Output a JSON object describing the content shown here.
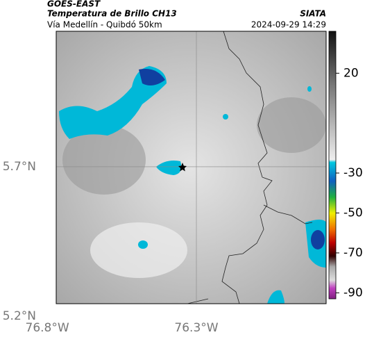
{
  "header": {
    "title": "GOES-EAST",
    "subtitle": "Temperatura de Brillo CH13",
    "source": "SIATA",
    "route": "Vía Medellín - Quibdó 50km",
    "timestamp": "2024-09-29 14:29"
  },
  "map": {
    "lon_range": [
      -76.77,
      -75.865
    ],
    "lat_range": [
      5.242,
      6.153
    ],
    "grid": true,
    "lon_ticks": [
      {
        "value": -76.8,
        "label": "76.8°W"
      },
      {
        "value": -76.3,
        "label": "76.3°W"
      }
    ],
    "lat_ticks": [
      {
        "value": 5.7,
        "label": "5.7°N"
      },
      {
        "value": 5.2,
        "label": "5.2°N"
      }
    ]
  },
  "colorbar": {
    "range": [
      -93,
      41
    ],
    "ticks": [
      20,
      -30,
      -50,
      -70,
      -90
    ]
  }
}
